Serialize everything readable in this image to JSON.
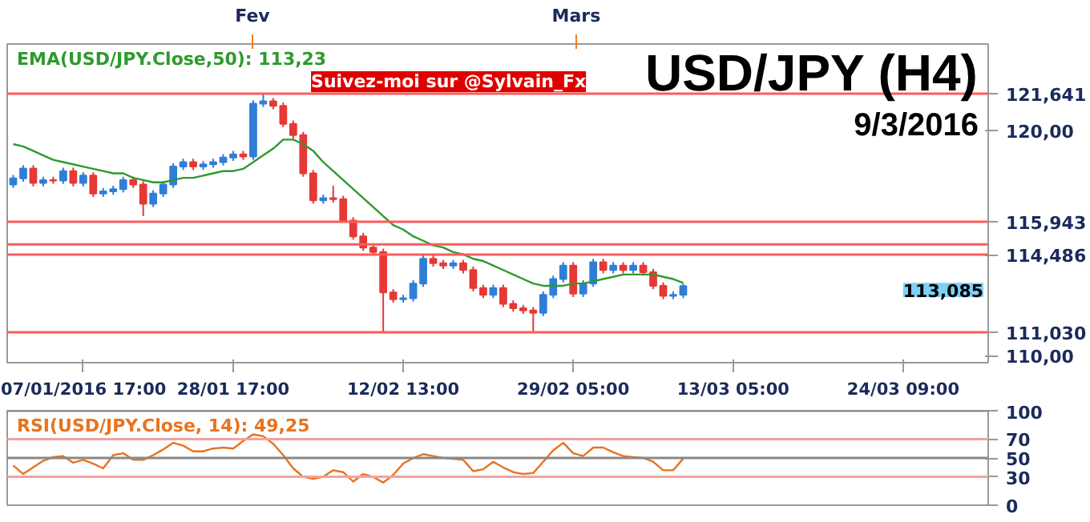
{
  "chart_data": [
    {
      "type": "candlestick",
      "title": "USD/JPY (H4)",
      "subtitle": "9/3/2016",
      "categories": [
        null,
        null,
        null,
        null,
        null,
        null,
        null,
        "07/01/2016 17:00",
        null,
        null,
        null,
        null,
        null,
        null,
        null,
        null,
        null,
        null,
        null,
        null,
        null,
        null,
        "28/01 17:00",
        null,
        null,
        null,
        null,
        null,
        null,
        null,
        null,
        null,
        null,
        null,
        null,
        null,
        null,
        null,
        null,
        "12/02 13:00",
        null,
        null,
        null,
        null,
        null,
        null,
        null,
        null,
        null,
        null,
        null,
        null,
        null,
        null,
        null,
        null,
        "29/02 05:00",
        null,
        null,
        null,
        null,
        null,
        null,
        null,
        null,
        null,
        null,
        null,
        null,
        null,
        null,
        null,
        "13/03 05:00",
        null,
        null,
        null,
        null,
        null,
        null,
        null,
        null,
        null,
        null,
        null,
        null,
        null,
        null,
        null,
        null,
        "24/03 09:00",
        null,
        null,
        null,
        null,
        null,
        null,
        null,
        null
      ],
      "ohlc": [
        [
          117.6,
          118.03,
          117.45,
          117.88
        ],
        [
          117.88,
          118.46,
          117.73,
          118.31
        ],
        [
          118.31,
          118.46,
          117.52,
          117.67
        ],
        [
          117.67,
          117.95,
          117.52,
          117.8
        ],
        [
          117.8,
          117.95,
          117.63,
          117.78
        ],
        [
          117.78,
          118.35,
          117.63,
          118.2
        ],
        [
          118.2,
          118.35,
          117.52,
          117.67
        ],
        [
          117.67,
          118.15,
          117.52,
          118.0
        ],
        [
          118.0,
          118.15,
          117.05,
          117.2
        ],
        [
          117.2,
          117.45,
          117.05,
          117.3
        ],
        [
          117.3,
          117.55,
          117.15,
          117.4
        ],
        [
          117.4,
          117.95,
          117.25,
          117.8
        ],
        [
          117.8,
          117.95,
          117.45,
          117.6
        ],
        [
          117.6,
          117.75,
          116.2,
          116.75
        ],
        [
          116.75,
          117.35,
          116.6,
          117.2
        ],
        [
          117.2,
          117.75,
          117.05,
          117.6
        ],
        [
          117.6,
          118.55,
          117.45,
          118.4
        ],
        [
          118.4,
          118.75,
          118.25,
          118.6
        ],
        [
          118.6,
          118.75,
          118.25,
          118.4
        ],
        [
          118.4,
          118.65,
          118.25,
          118.5
        ],
        [
          118.5,
          118.75,
          118.35,
          118.6
        ],
        [
          118.6,
          118.95,
          118.45,
          118.8
        ],
        [
          118.8,
          119.1,
          118.65,
          118.95
        ],
        [
          118.95,
          119.1,
          118.7,
          118.85
        ],
        [
          118.85,
          121.35,
          118.7,
          121.2
        ],
        [
          121.2,
          121.641,
          121.05,
          121.3
        ],
        [
          121.3,
          121.45,
          120.95,
          121.1
        ],
        [
          121.1,
          121.25,
          120.15,
          120.3
        ],
        [
          120.3,
          120.45,
          119.65,
          119.8
        ],
        [
          119.8,
          119.95,
          117.95,
          118.1
        ],
        [
          118.1,
          118.25,
          116.75,
          116.9
        ],
        [
          116.9,
          117.15,
          116.75,
          117.0
        ],
        [
          117.0,
          117.55,
          116.8,
          116.95
        ],
        [
          116.95,
          117.1,
          115.943,
          116.0
        ],
        [
          116.0,
          116.15,
          115.15,
          115.3
        ],
        [
          115.3,
          115.45,
          114.65,
          114.8
        ],
        [
          114.8,
          114.95,
          114.45,
          114.6
        ],
        [
          114.6,
          114.75,
          111.03,
          112.8
        ],
        [
          112.8,
          112.95,
          112.35,
          112.5
        ],
        [
          112.5,
          112.7,
          112.35,
          112.55
        ],
        [
          112.55,
          113.35,
          112.4,
          113.2
        ],
        [
          113.2,
          114.45,
          113.05,
          114.3
        ],
        [
          114.3,
          114.45,
          113.95,
          114.1
        ],
        [
          114.1,
          114.25,
          113.85,
          114.0
        ],
        [
          114.0,
          114.25,
          113.85,
          114.1
        ],
        [
          114.1,
          114.25,
          113.65,
          113.8
        ],
        [
          113.8,
          113.95,
          112.85,
          113.0
        ],
        [
          113.0,
          113.15,
          112.55,
          112.7
        ],
        [
          112.7,
          113.15,
          112.55,
          113.0
        ],
        [
          113.0,
          113.15,
          112.15,
          112.3
        ],
        [
          112.3,
          112.45,
          111.95,
          112.1
        ],
        [
          112.1,
          112.25,
          111.85,
          112.0
        ],
        [
          112.0,
          112.15,
          111.03,
          111.9
        ],
        [
          111.9,
          112.85,
          111.75,
          112.7
        ],
        [
          112.7,
          113.55,
          112.55,
          113.4
        ],
        [
          113.4,
          114.15,
          113.25,
          114.0
        ],
        [
          114.0,
          114.15,
          112.6,
          112.75
        ],
        [
          112.75,
          113.35,
          112.6,
          113.2
        ],
        [
          113.2,
          114.3,
          113.05,
          114.15
        ],
        [
          114.15,
          114.3,
          113.65,
          113.8
        ],
        [
          113.8,
          114.15,
          113.65,
          114.0
        ],
        [
          114.0,
          114.15,
          113.65,
          113.8
        ],
        [
          113.8,
          114.15,
          113.65,
          114.0
        ],
        [
          114.0,
          114.15,
          113.55,
          113.7
        ],
        [
          113.7,
          113.85,
          112.95,
          113.1
        ],
        [
          113.1,
          113.25,
          112.5,
          112.65
        ],
        [
          112.65,
          112.85,
          112.5,
          112.7
        ],
        [
          112.7,
          113.2,
          112.55,
          113.085
        ],
        null,
        null,
        null,
        null,
        null,
        null,
        null,
        null,
        null,
        null,
        null,
        null,
        null,
        null,
        null,
        null,
        null,
        null,
        null,
        null,
        null,
        null,
        null,
        null,
        null,
        null,
        null,
        null,
        null,
        null
      ],
      "colors": [
        "#2f7ed8",
        "#2f7ed8",
        "#e53935",
        "#2f7ed8",
        "#e53935",
        "#2f7ed8",
        "#e53935",
        "#2f7ed8",
        "#e53935",
        "#2f7ed8",
        "#2f7ed8",
        "#2f7ed8",
        "#e53935",
        "#e53935",
        "#2f7ed8",
        "#2f7ed8",
        "#2f7ed8",
        "#2f7ed8",
        "#e53935",
        "#2f7ed8",
        "#2f7ed8",
        "#2f7ed8",
        "#2f7ed8",
        "#e53935",
        "#2f7ed8",
        "#2f7ed8",
        "#e53935",
        "#e53935",
        "#e53935",
        "#e53935",
        "#e53935",
        "#2f7ed8",
        "#e53935",
        "#e53935",
        "#e53935",
        "#e53935",
        "#e53935",
        "#e53935",
        "#e53935",
        "#2f7ed8",
        "#2f7ed8",
        "#2f7ed8",
        "#e53935",
        "#e53935",
        "#2f7ed8",
        "#e53935",
        "#e53935",
        "#e53935",
        "#2f7ed8",
        "#e53935",
        "#e53935",
        "#e53935",
        "#e53935",
        "#2f7ed8",
        "#2f7ed8",
        "#2f7ed8",
        "#e53935",
        "#2f7ed8",
        "#2f7ed8",
        "#e53935",
        "#2f7ed8",
        "#e53935",
        "#2f7ed8",
        "#e53935",
        "#e53935",
        "#e53935",
        "#2f7ed8",
        "#2f7ed8",
        null,
        null,
        null,
        null,
        null,
        null,
        null,
        null,
        null,
        null,
        null,
        null,
        null,
        null,
        null,
        null,
        null,
        null,
        null,
        null,
        null,
        null,
        null,
        null,
        null,
        null,
        null,
        null,
        null,
        null
      ],
      "series": [
        {
          "type": "line",
          "name": "EMA(USD/JPY.Close,50): 113,23",
          "color": "#2e9a2e",
          "values": [
            119.4,
            119.3,
            119.1,
            118.9,
            118.7,
            118.6,
            118.5,
            118.4,
            118.3,
            118.2,
            118.1,
            118.1,
            117.9,
            117.8,
            117.7,
            117.7,
            117.8,
            117.9,
            117.9,
            118.0,
            118.1,
            118.2,
            118.2,
            118.3,
            118.6,
            118.9,
            119.2,
            119.6,
            119.6,
            119.4,
            119.1,
            118.6,
            118.2,
            117.8,
            117.4,
            117.0,
            116.6,
            116.2,
            115.8,
            115.6,
            115.3,
            115.1,
            114.9,
            114.8,
            114.6,
            114.5,
            114.3,
            114.2,
            114.0,
            113.8,
            113.6,
            113.4,
            113.2,
            113.1,
            113.1,
            113.1,
            113.2,
            113.2,
            113.3,
            113.4,
            113.5,
            113.6,
            113.6,
            113.6,
            113.6,
            113.5,
            113.4,
            113.23,
            null,
            null,
            null,
            null,
            null,
            null,
            null,
            null,
            null,
            null,
            null,
            null,
            null,
            null,
            null,
            null,
            null,
            null,
            null,
            null,
            null,
            null,
            null,
            null,
            null,
            null,
            null,
            null,
            null,
            null
          ]
        }
      ],
      "ylim": [
        109.68,
        123.85
      ],
      "yticks": [
        {
          "value": 110,
          "label": "110,00"
        },
        {
          "value": 120,
          "label": "120,00"
        }
      ],
      "ref_lines": [
        {
          "axis": "y",
          "value": 121.641,
          "label": "121,641",
          "color": "#ff5a5a"
        },
        {
          "axis": "y",
          "value": 115.943,
          "label": "115,943",
          "color": "#ff5a5a"
        },
        {
          "axis": "y",
          "value": 114.94,
          "color": "#ff5a5a"
        },
        {
          "axis": "y",
          "value": 114.486,
          "label": "114,486",
          "color": "#ff5a5a"
        },
        {
          "axis": "y",
          "value": 111.03,
          "label": "111,030",
          "color": "#ff5a5a"
        }
      ],
      "annotations": [
        "Fev",
        "Mars",
        "Suivez-moi sur @Sylvain_Fx",
        "113,085"
      ],
      "grid": false
    },
    {
      "type": "line",
      "series": [
        {
          "name": "RSI(USD/JPY.Close, 14): 49,25",
          "color": "#e8731e",
          "values": [
            42,
            33,
            40,
            47,
            51,
            52,
            45,
            48,
            44,
            39,
            53,
            55,
            48,
            48,
            53,
            59,
            66,
            63,
            57,
            57,
            60,
            61,
            60,
            68,
            75,
            73,
            65,
            53,
            39,
            30,
            28,
            30,
            37,
            35,
            25,
            33,
            30,
            24,
            32,
            44,
            50,
            54,
            52,
            50,
            49,
            48,
            36,
            38,
            46,
            40,
            35,
            33,
            34,
            46,
            58,
            66,
            55,
            52,
            61,
            61,
            56,
            52,
            51,
            50,
            46,
            37,
            37,
            49.25,
            null,
            null,
            null,
            null,
            null,
            null,
            null,
            null,
            null,
            null,
            null,
            null,
            null,
            null,
            null,
            null,
            null,
            null,
            null,
            null,
            null,
            null,
            null,
            null,
            null,
            null,
            null,
            null,
            null,
            null
          ]
        }
      ],
      "ylim": [
        0,
        100
      ],
      "yticks": [
        0,
        30,
        50,
        70,
        100
      ],
      "tick_labels": "y",
      "ref_lines": [
        {
          "axis": "y",
          "value": 100,
          "color": "#888888"
        },
        {
          "axis": "y",
          "value": 70,
          "color": "#f4a0a0"
        },
        {
          "axis": "y",
          "value": 50,
          "color": "#888888"
        },
        {
          "axis": "y",
          "value": 30,
          "color": "#f4a0a0"
        }
      ],
      "grid": false
    }
  ]
}
